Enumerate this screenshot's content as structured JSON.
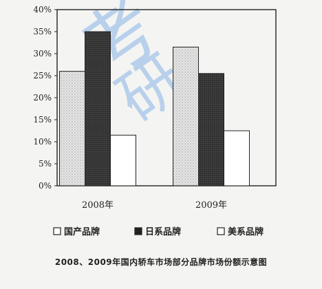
{
  "chart_data": {
    "type": "bar",
    "categories": [
      "2008年",
      "2009年"
    ],
    "series": [
      {
        "name": "国产品牌",
        "values": [
          26,
          31.5
        ]
      },
      {
        "name": "日系品牌",
        "values": [
          35,
          25.5
        ]
      },
      {
        "name": "美系品牌",
        "values": [
          11.5,
          12.5
        ]
      }
    ],
    "y_ticks": [
      "0%",
      "5%",
      "10%",
      "15%",
      "20%",
      "25%",
      "30%",
      "35%",
      "40%"
    ],
    "ylim": [
      0,
      40
    ],
    "grid": false,
    "legend_position": "bottom",
    "caption": "2008、2009年国内轿车市场部分品牌市场份额示意图",
    "colors": {
      "series_0": "#d8d8d8",
      "series_1": "#3a3a3a",
      "series_2": "#ffffff",
      "axis": "#222222"
    },
    "watermark_text": "考研"
  }
}
